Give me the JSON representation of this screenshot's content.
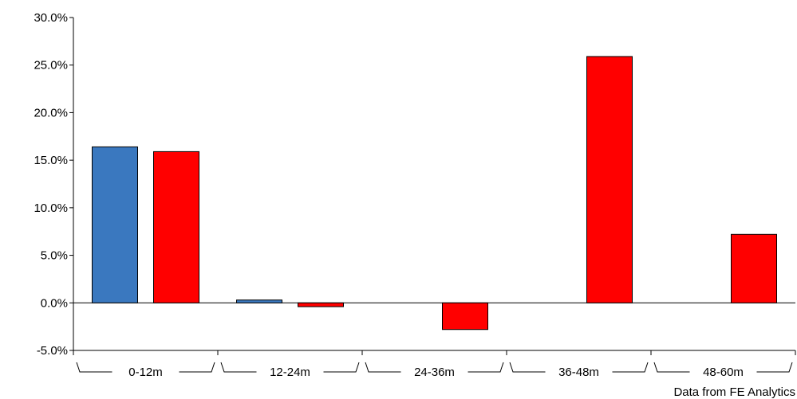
{
  "chart_data": {
    "type": "bar",
    "categories": [
      "0-12m",
      "12-24m",
      "24-36m",
      "36-48m",
      "48-60m"
    ],
    "series": [
      {
        "color": "#3a78bf",
        "values": [
          16.4,
          0.3,
          null,
          null,
          null
        ]
      },
      {
        "color": "#ff0000",
        "values": [
          15.9,
          -0.4,
          -2.8,
          25.9,
          7.2
        ]
      }
    ],
    "ylim": [
      -5,
      30
    ],
    "yticks": [
      -5,
      0,
      5,
      10,
      15,
      20,
      25,
      30
    ],
    "ytick_labels": [
      "-5.0%",
      "0.0%",
      "5.0%",
      "10.0%",
      "15.0%",
      "20.0%",
      "25.0%",
      "30.0%"
    ],
    "grid": false,
    "legend": "none"
  },
  "source_note": "Data from FE Analytics"
}
